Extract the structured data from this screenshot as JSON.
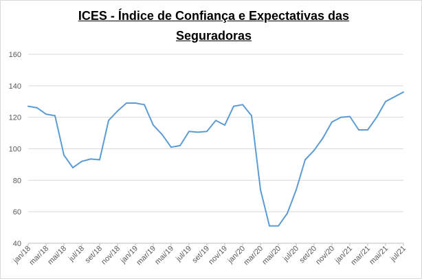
{
  "chart_data": {
    "type": "line",
    "title_line1": "ICES - Índice de Confiança e Expectativas das",
    "title_line2": "Seguradoras",
    "xlabel": "",
    "ylabel": "",
    "ylim": [
      40,
      160
    ],
    "yticks": [
      "40",
      "60",
      "80",
      "100",
      "120",
      "140",
      "160"
    ],
    "grid": true,
    "legend": "none",
    "line_color": "#5b9bd5",
    "x": [
      "jan/18",
      "fev/18",
      "mar/18",
      "abr/18",
      "mai/18",
      "jun/18",
      "jul/18",
      "ago/18",
      "set/18",
      "out/18",
      "nov/18",
      "dez/18",
      "jan/19",
      "fev/19",
      "mar/19",
      "abr/19",
      "mai/19",
      "jun/19",
      "jul/19",
      "ago/19",
      "set/19",
      "out/19",
      "nov/19",
      "dez/19",
      "jan/20",
      "fev/20",
      "mar/20",
      "abr/20",
      "mai/20",
      "jun/20",
      "jul/20",
      "ago/20",
      "set/20",
      "out/20",
      "nov/20",
      "dez/20",
      "jan/21",
      "fev/21",
      "mar/21",
      "abr/21",
      "mai/21",
      "jun/21",
      "jul/21"
    ],
    "xtick_labels": [
      "jan/18",
      "mar/18",
      "mai/18",
      "jul/18",
      "set/18",
      "nov/18",
      "jan/19",
      "mar/19",
      "mai/19",
      "jul/19",
      "set/19",
      "nov/19",
      "jan/20",
      "mar/20",
      "mai/20",
      "jul/20",
      "set/20",
      "nov/20",
      "jan/21",
      "mar/21",
      "mai/21",
      "jul/21"
    ],
    "series": [
      {
        "values": [
          127,
          126,
          122,
          121,
          96,
          88,
          92,
          93.5,
          93,
          118,
          124,
          129,
          129,
          128,
          115,
          109,
          101,
          102,
          111,
          110.5,
          111,
          118,
          115,
          127,
          128,
          121,
          74,
          51,
          51,
          59,
          74,
          93,
          99,
          107,
          117,
          120,
          120.5,
          112,
          112,
          120,
          130,
          133,
          136
        ]
      }
    ]
  }
}
